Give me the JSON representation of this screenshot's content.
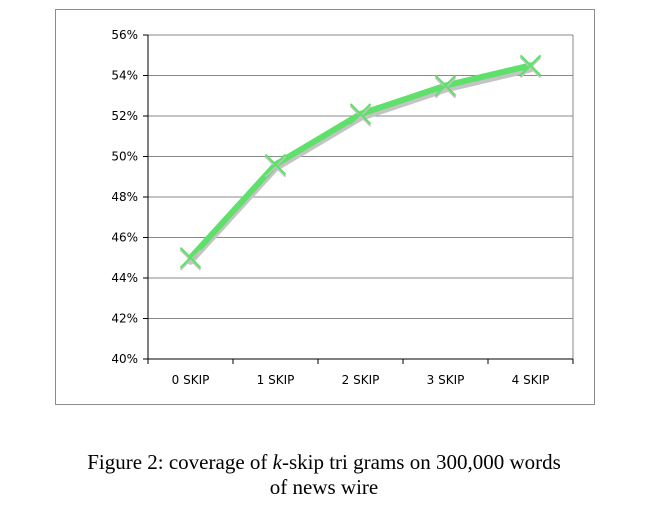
{
  "chart_data": {
    "type": "line",
    "categories": [
      "0 SKIP",
      "1 SKIP",
      "2 SKIP",
      "3 SKIP",
      "4 SKIP"
    ],
    "series": [
      {
        "values": [
          45.0,
          49.6,
          52.1,
          53.5,
          54.5
        ]
      }
    ],
    "y_ticks": [
      "40%",
      "42%",
      "44%",
      "46%",
      "48%",
      "50%",
      "52%",
      "54%",
      "56%"
    ],
    "ylim": [
      40,
      56
    ],
    "grid": true,
    "marker": "x",
    "line_color": "#5ee06a",
    "shadow_color": "#c4c4c4"
  },
  "caption": {
    "prefix": "Figure 2: coverage of ",
    "italic": "k",
    "suffix_line1": "-skip tri grams on 300,000 words",
    "line2": "of news wire"
  }
}
